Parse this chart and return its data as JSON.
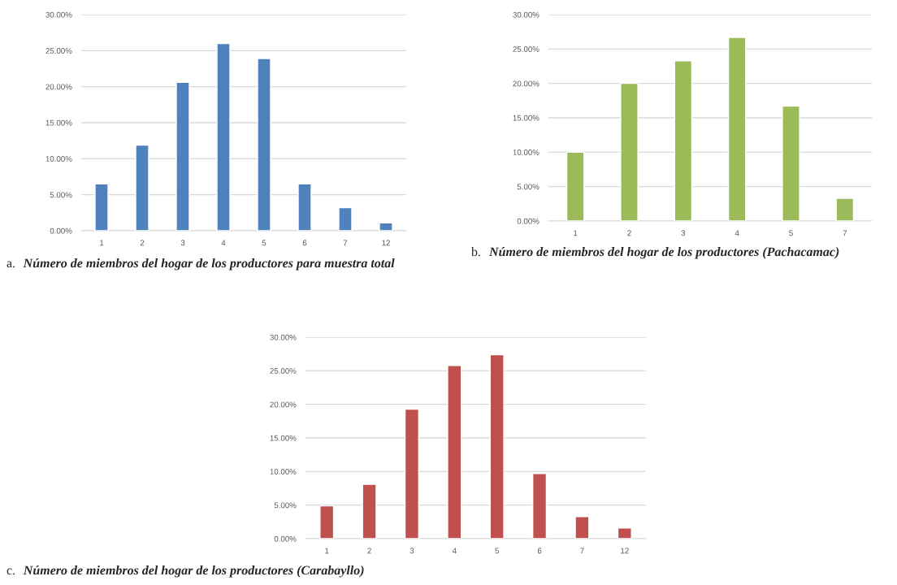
{
  "chart_data": [
    {
      "type": "bar",
      "title": "a. Número de miembros del hogar de los productores para muestra total",
      "categories": [
        "1",
        "2",
        "3",
        "4",
        "5",
        "6",
        "7",
        "12"
      ],
      "series": [
        {
          "color": "#4f81bd",
          "values": [
            6.5,
            11.9,
            20.6,
            26.0,
            23.9,
            6.5,
            3.2,
            1.1
          ]
        }
      ],
      "ylim": [
        0,
        30
      ],
      "yticks": [
        {
          "value": 0,
          "label": "0.00%"
        },
        {
          "value": 5,
          "label": "5.00%"
        },
        {
          "value": 10,
          "label": "10.00%"
        },
        {
          "value": 15,
          "label": "15.00%"
        },
        {
          "value": 20,
          "label": "20.00%"
        },
        {
          "value": 25,
          "label": "25.00%"
        },
        {
          "value": 30,
          "label": "30.00%"
        }
      ],
      "grid": "y",
      "legend": false
    },
    {
      "type": "bar",
      "title": "b. Número de miembros del hogar de los productores (Pachacamac)",
      "categories": [
        "1",
        "2",
        "3",
        "4",
        "5",
        "7"
      ],
      "series": [
        {
          "color": "#9bbb59",
          "values": [
            10.0,
            20.0,
            23.3,
            26.7,
            16.7,
            3.3
          ]
        }
      ],
      "ylim": [
        0,
        30
      ],
      "yticks": [
        {
          "value": 0,
          "label": "0.00%"
        },
        {
          "value": 5,
          "label": "5.00%"
        },
        {
          "value": 10,
          "label": "10.00%"
        },
        {
          "value": 15,
          "label": "15.00%"
        },
        {
          "value": 20,
          "label": "20.00%"
        },
        {
          "value": 25,
          "label": "25.00%"
        },
        {
          "value": 30,
          "label": "30.00%"
        }
      ],
      "grid": "y",
      "legend": false
    },
    {
      "type": "bar",
      "title": "c. Número de miembros del hogar de los productores (Carabayllo)",
      "categories": [
        "1",
        "2",
        "3",
        "4",
        "5",
        "6",
        "7",
        "12"
      ],
      "series": [
        {
          "color": "#c0504d",
          "values": [
            4.9,
            8.1,
            19.3,
            25.8,
            27.4,
            9.7,
            3.3,
            1.6
          ]
        }
      ],
      "ylim": [
        0,
        30
      ],
      "yticks": [
        {
          "value": 0,
          "label": "0.00%"
        },
        {
          "value": 5,
          "label": "5.00%"
        },
        {
          "value": 10,
          "label": "10.00%"
        },
        {
          "value": 15,
          "label": "15.00%"
        },
        {
          "value": 20,
          "label": "20.00%"
        },
        {
          "value": 25,
          "label": "25.00%"
        },
        {
          "value": 30,
          "label": "30.00%"
        }
      ],
      "grid": "y",
      "legend": false
    }
  ]
}
